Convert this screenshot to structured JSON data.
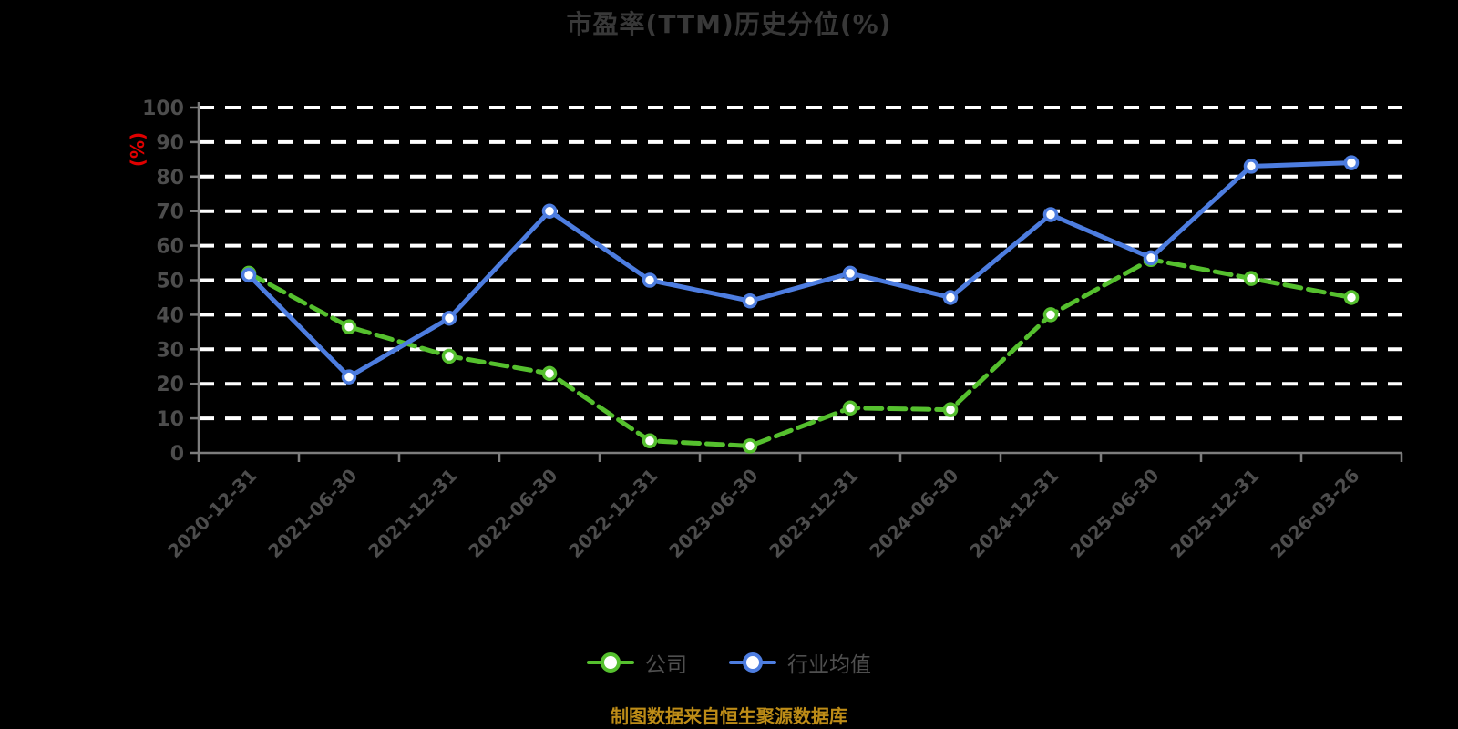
{
  "colors": {
    "background": "#000000",
    "title": "#383838",
    "axis_line": "#7d7d7d",
    "tick_label": "#4d4d4d",
    "gridline": "#ffffff",
    "unit_label": "#e00000",
    "legend_text": "#4f4f4f",
    "source_note": "#bd8c17",
    "marker_fill": "#ffffff"
  },
  "chart_data": {
    "type": "line",
    "title": "市盈率(TTM)历史分位(%)",
    "ylabel": "(%)",
    "xlabel": "",
    "ylim": [
      0,
      100
    ],
    "ytick_step": 10,
    "grid": "horizontal-dashed-white",
    "legend_position": "bottom-center",
    "x_label_rotation": 45,
    "categories": [
      "2020-12-31",
      "2021-06-30",
      "2021-12-31",
      "2022-06-30",
      "2022-12-31",
      "2023-06-30",
      "2023-12-31",
      "2024-06-30",
      "2024-12-31",
      "2025-06-30",
      "2025-12-31",
      "2026-03-26"
    ],
    "series": [
      {
        "name": "公司",
        "color": "#55c02e",
        "line_style": "dashed",
        "marker": "circle-white-fill",
        "values": [
          52,
          36.5,
          28,
          23,
          3.5,
          2,
          13,
          12.5,
          40,
          56,
          50.5,
          45
        ]
      },
      {
        "name": "行业均值",
        "color": "#4d7de0",
        "line_style": "solid",
        "marker": "circle-white-fill",
        "values": [
          51.5,
          22,
          39,
          70,
          50,
          44,
          52,
          45,
          69,
          56.5,
          83,
          84
        ]
      }
    ],
    "source_note": "制图数据来自恒生聚源数据库"
  }
}
